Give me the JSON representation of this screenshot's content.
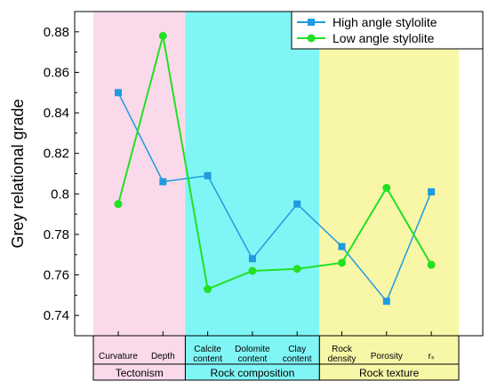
{
  "chart_data": {
    "type": "line",
    "ylabel": "Grey relational grade",
    "ylim": [
      0.73,
      0.89
    ],
    "yticks": [
      "0.74",
      "0.76",
      "0.78",
      "0.8",
      "0.82",
      "0.84",
      "0.86",
      "0.88"
    ],
    "categories": [
      [
        "Curvature"
      ],
      [
        "Depth"
      ],
      [
        "Calcite",
        "content"
      ],
      [
        "Dolomite",
        "content"
      ],
      [
        "Clay",
        "content"
      ],
      [
        "Rock",
        "density"
      ],
      [
        "Porosity"
      ],
      [
        "rₛ"
      ]
    ],
    "groups": [
      {
        "label": "Tectonism",
        "start": 0,
        "end": 1,
        "color": "#fadaea"
      },
      {
        "label": "Rock composition",
        "start": 2,
        "end": 4,
        "color": "#80f5f5"
      },
      {
        "label": "Rock texture",
        "start": 5,
        "end": 7,
        "color": "#f8f7a8"
      }
    ],
    "series": [
      {
        "name": "High angle stylolite",
        "color": "#1f9be0",
        "marker": "square",
        "values": [
          0.85,
          0.806,
          0.809,
          0.768,
          0.795,
          0.774,
          0.747,
          0.801
        ]
      },
      {
        "name": "Low angle stylolite",
        "color": "#22e022",
        "marker": "circle",
        "values": [
          0.795,
          0.878,
          0.753,
          0.762,
          0.763,
          0.766,
          0.803,
          0.765
        ]
      }
    ],
    "legend": "top-right",
    "grid": false
  }
}
